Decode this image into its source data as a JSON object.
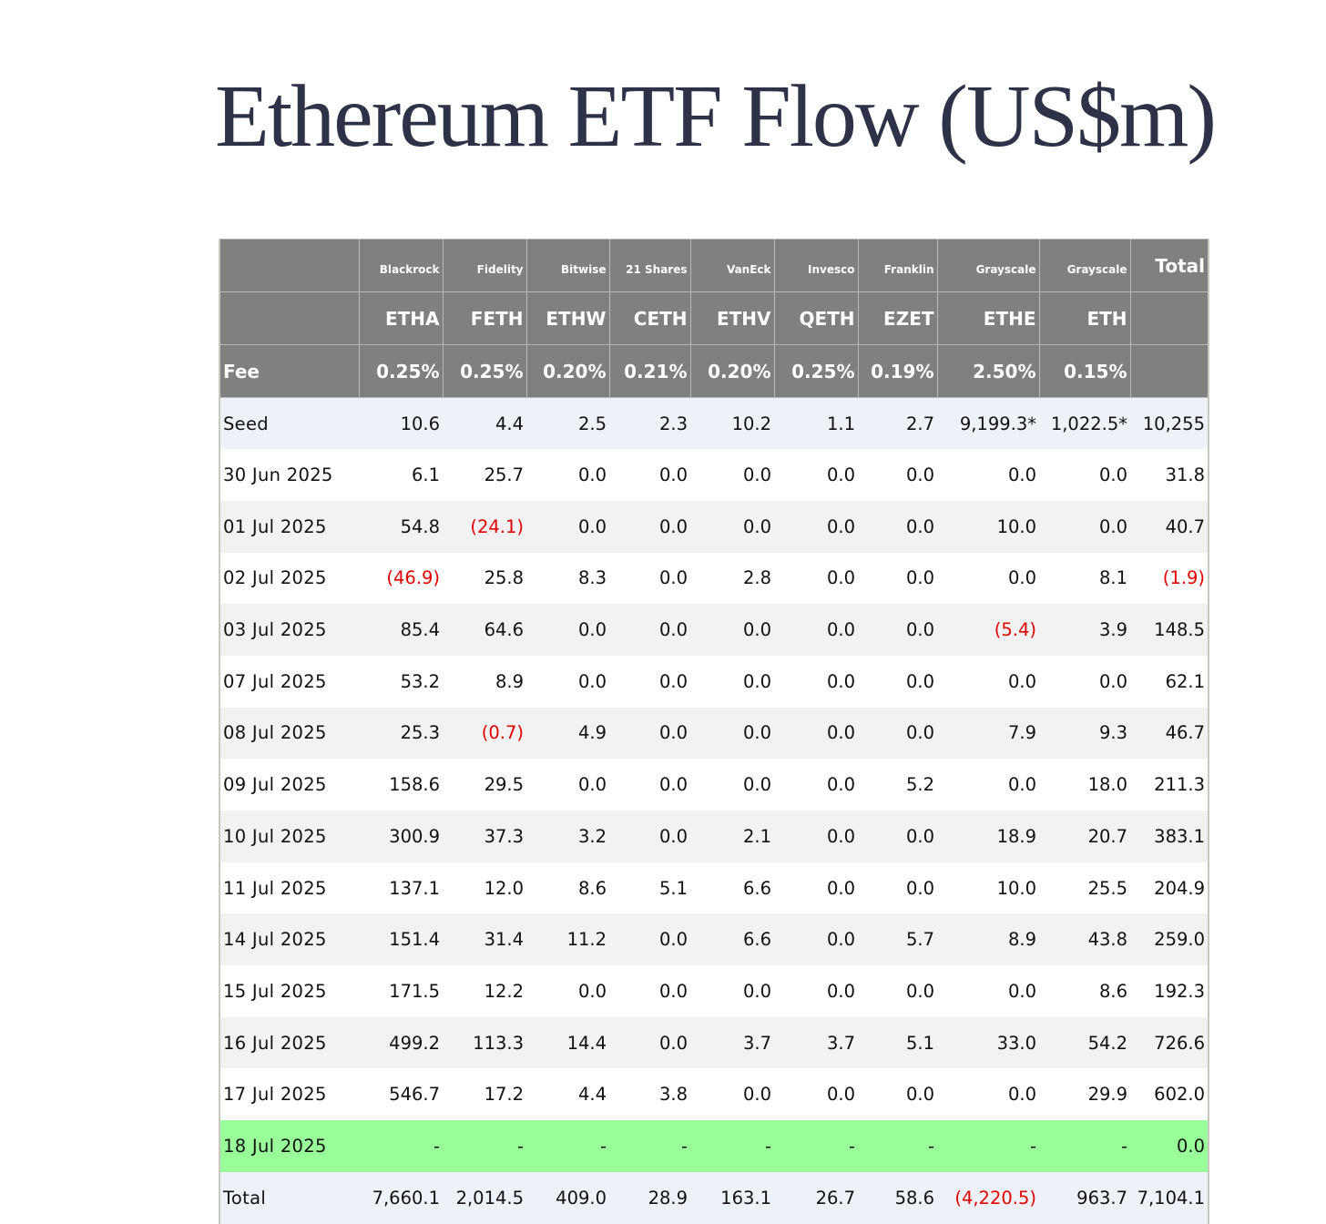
{
  "title": "Ethereum ETF Flow (US$m)",
  "table": {
    "issuers": [
      "Blackrock",
      "Fidelity",
      "Bitwise",
      "21 Shares",
      "VanEck",
      "Invesco",
      "Franklin",
      "Grayscale",
      "Grayscale"
    ],
    "total_label": "Total",
    "tickers": [
      "ETHA",
      "FETH",
      "ETHW",
      "CETH",
      "ETHV",
      "QETH",
      "EZET",
      "ETHE",
      "ETH"
    ],
    "fee_label": "Fee",
    "fees": [
      "0.25%",
      "0.25%",
      "0.20%",
      "0.21%",
      "0.20%",
      "0.25%",
      "0.19%",
      "2.50%",
      "0.15%"
    ],
    "rows": [
      {
        "label": "Seed",
        "values": [
          "10.6",
          "4.4",
          "2.5",
          "2.3",
          "10.2",
          "1.1",
          "2.7",
          "9,199.3*",
          "1,022.5*",
          "10,255"
        ]
      },
      {
        "label": "30 Jun 2025",
        "values": [
          "6.1",
          "25.7",
          "0.0",
          "0.0",
          "0.0",
          "0.0",
          "0.0",
          "0.0",
          "0.0",
          "31.8"
        ]
      },
      {
        "label": "01 Jul 2025",
        "values": [
          "54.8",
          "(24.1)",
          "0.0",
          "0.0",
          "0.0",
          "0.0",
          "0.0",
          "10.0",
          "0.0",
          "40.7"
        ]
      },
      {
        "label": "02 Jul 2025",
        "values": [
          "(46.9)",
          "25.8",
          "8.3",
          "0.0",
          "2.8",
          "0.0",
          "0.0",
          "0.0",
          "8.1",
          "(1.9)"
        ]
      },
      {
        "label": "03 Jul 2025",
        "values": [
          "85.4",
          "64.6",
          "0.0",
          "0.0",
          "0.0",
          "0.0",
          "0.0",
          "(5.4)",
          "3.9",
          "148.5"
        ]
      },
      {
        "label": "07 Jul 2025",
        "values": [
          "53.2",
          "8.9",
          "0.0",
          "0.0",
          "0.0",
          "0.0",
          "0.0",
          "0.0",
          "0.0",
          "62.1"
        ]
      },
      {
        "label": "08 Jul 2025",
        "values": [
          "25.3",
          "(0.7)",
          "4.9",
          "0.0",
          "0.0",
          "0.0",
          "0.0",
          "7.9",
          "9.3",
          "46.7"
        ]
      },
      {
        "label": "09 Jul 2025",
        "values": [
          "158.6",
          "29.5",
          "0.0",
          "0.0",
          "0.0",
          "0.0",
          "5.2",
          "0.0",
          "18.0",
          "211.3"
        ]
      },
      {
        "label": "10 Jul 2025",
        "values": [
          "300.9",
          "37.3",
          "3.2",
          "0.0",
          "2.1",
          "0.0",
          "0.0",
          "18.9",
          "20.7",
          "383.1"
        ]
      },
      {
        "label": "11 Jul 2025",
        "values": [
          "137.1",
          "12.0",
          "8.6",
          "5.1",
          "6.6",
          "0.0",
          "0.0",
          "10.0",
          "25.5",
          "204.9"
        ]
      },
      {
        "label": "14 Jul 2025",
        "values": [
          "151.4",
          "31.4",
          "11.2",
          "0.0",
          "6.6",
          "0.0",
          "5.7",
          "8.9",
          "43.8",
          "259.0"
        ]
      },
      {
        "label": "15 Jul 2025",
        "values": [
          "171.5",
          "12.2",
          "0.0",
          "0.0",
          "0.0",
          "0.0",
          "0.0",
          "0.0",
          "8.6",
          "192.3"
        ]
      },
      {
        "label": "16 Jul 2025",
        "values": [
          "499.2",
          "113.3",
          "14.4",
          "0.0",
          "3.7",
          "3.7",
          "5.1",
          "33.0",
          "54.2",
          "726.6"
        ]
      },
      {
        "label": "17 Jul 2025",
        "values": [
          "546.7",
          "17.2",
          "4.4",
          "3.8",
          "0.0",
          "0.0",
          "0.0",
          "0.0",
          "29.9",
          "602.0"
        ]
      },
      {
        "label": "18 Jul 2025",
        "values": [
          "-",
          "-",
          "-",
          "-",
          "-",
          "-",
          "-",
          "-",
          "-",
          "0.0"
        ]
      },
      {
        "label": "Total",
        "values": [
          "7,660.1",
          "2,014.5",
          "409.0",
          "28.9",
          "163.1",
          "26.7",
          "58.6",
          "(4,220.5)",
          "963.7",
          "7,104.1"
        ]
      }
    ]
  }
}
